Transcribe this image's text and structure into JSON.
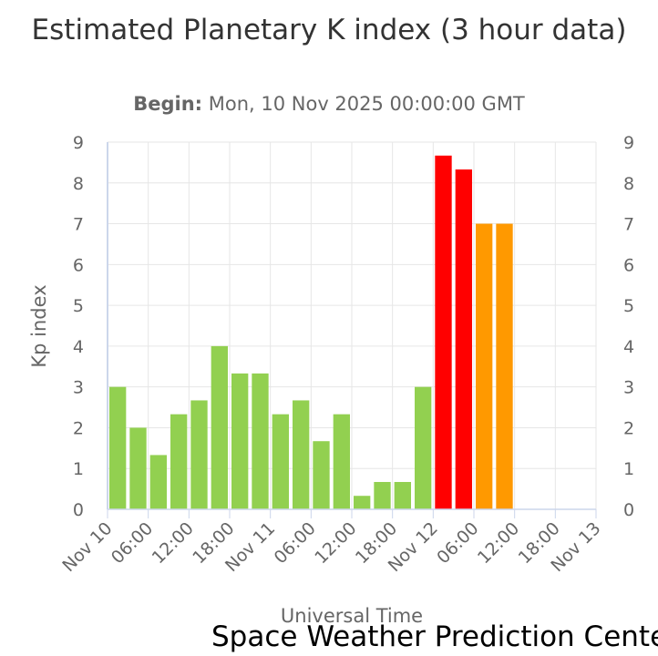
{
  "header": {
    "title": "Estimated Planetary K index (3 hour data)",
    "subtitle_label": "Begin:",
    "subtitle_value": "Mon, 10 Nov 2025 00:00:00 GMT"
  },
  "credit": "Space Weather Prediction Center",
  "chart_data": {
    "type": "bar",
    "title": "Estimated Planetary K index (3 hour data)",
    "subtitle": "Begin: Mon, 10 Nov 2025 00:00:00 GMT",
    "xlabel": "Universal Time",
    "ylabel": "Kp index",
    "ylim": [
      0,
      9
    ],
    "yticks": [
      "0",
      "1",
      "2",
      "3",
      "4",
      "5",
      "6",
      "7",
      "8",
      "9"
    ],
    "xticks": [
      "Nov 10",
      "06:00",
      "12:00",
      "18:00",
      "Nov 11",
      "06:00",
      "12:00",
      "18:00",
      "Nov 12",
      "06:00",
      "12:00",
      "18:00",
      "Nov 13"
    ],
    "grid": true,
    "colors": {
      "green": "#92d050",
      "red": "#ff0000",
      "orange": "#ff9900",
      "grid": "#e6e6e6",
      "axis": "#ccd6eb"
    },
    "bars": [
      {
        "time": "Nov 10 00:00",
        "value": 3.0,
        "color": "green"
      },
      {
        "time": "Nov 10 03:00",
        "value": 2.0,
        "color": "green"
      },
      {
        "time": "Nov 10 06:00",
        "value": 1.33,
        "color": "green"
      },
      {
        "time": "Nov 10 09:00",
        "value": 2.33,
        "color": "green"
      },
      {
        "time": "Nov 10 12:00",
        "value": 2.67,
        "color": "green"
      },
      {
        "time": "Nov 10 15:00",
        "value": 4.0,
        "color": "green"
      },
      {
        "time": "Nov 10 18:00",
        "value": 3.33,
        "color": "green"
      },
      {
        "time": "Nov 10 21:00",
        "value": 3.33,
        "color": "green"
      },
      {
        "time": "Nov 11 00:00",
        "value": 2.33,
        "color": "green"
      },
      {
        "time": "Nov 11 03:00",
        "value": 2.67,
        "color": "green"
      },
      {
        "time": "Nov 11 06:00",
        "value": 1.67,
        "color": "green"
      },
      {
        "time": "Nov 11 09:00",
        "value": 2.33,
        "color": "green"
      },
      {
        "time": "Nov 11 12:00",
        "value": 0.33,
        "color": "green"
      },
      {
        "time": "Nov 11 15:00",
        "value": 0.67,
        "color": "green"
      },
      {
        "time": "Nov 11 18:00",
        "value": 0.67,
        "color": "green"
      },
      {
        "time": "Nov 11 21:00",
        "value": 3.0,
        "color": "green"
      },
      {
        "time": "Nov 12 00:00",
        "value": 8.67,
        "color": "red"
      },
      {
        "time": "Nov 12 03:00",
        "value": 8.33,
        "color": "red"
      },
      {
        "time": "Nov 12 06:00",
        "value": 7.0,
        "color": "orange"
      },
      {
        "time": "Nov 12 09:00",
        "value": 7.0,
        "color": "orange"
      }
    ]
  }
}
